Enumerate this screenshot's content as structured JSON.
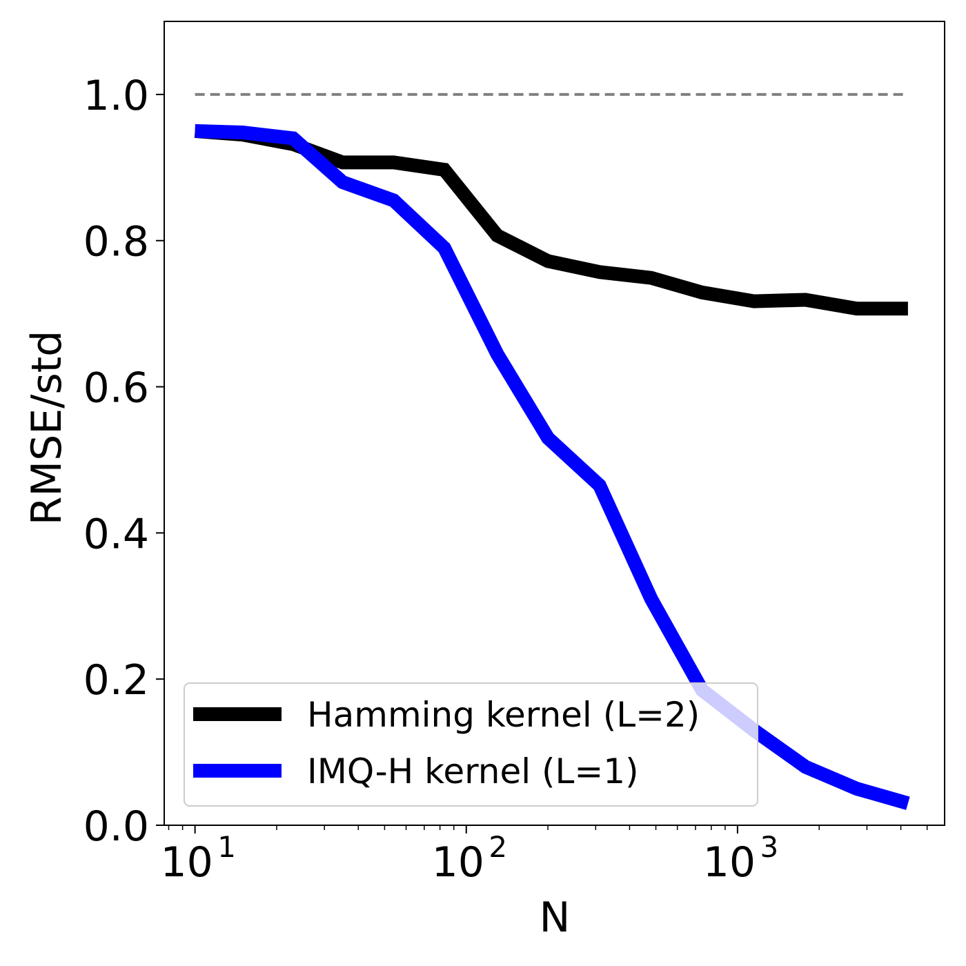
{
  "chart_data": {
    "type": "line",
    "title": "",
    "xlabel": "N",
    "ylabel": "RMSE/std",
    "x_scale": "log",
    "xlim": [
      7.7,
      5800
    ],
    "ylim": [
      0.0,
      1.1
    ],
    "grid": false,
    "legend_position": "lower-left",
    "x_ticks": [
      {
        "value": 10,
        "base": "10",
        "exp": "1"
      },
      {
        "value": 100,
        "base": "10",
        "exp": "2"
      },
      {
        "value": 1000,
        "base": "10",
        "exp": "3"
      }
    ],
    "y_ticks": [
      {
        "value": 0.0,
        "label": "0.0"
      },
      {
        "value": 0.2,
        "label": "0.2"
      },
      {
        "value": 0.4,
        "label": "0.4"
      },
      {
        "value": 0.6,
        "label": "0.6"
      },
      {
        "value": 0.8,
        "label": "0.8"
      },
      {
        "value": 1.0,
        "label": "1.0"
      }
    ],
    "x": [
      10,
      15,
      23,
      35,
      54,
      83,
      130,
      200,
      310,
      480,
      740,
      1150,
      1780,
      2750,
      4250
    ],
    "series": [
      {
        "name": "Hamming kernel (L=2)",
        "color": "#000000",
        "values": [
          0.95,
          0.945,
          0.932,
          0.907,
          0.907,
          0.897,
          0.807,
          0.772,
          0.757,
          0.749,
          0.729,
          0.717,
          0.719,
          0.707,
          0.707
        ]
      },
      {
        "name": "IMQ-H kernel (L=1)",
        "color": "#0000ff",
        "values": [
          0.95,
          0.948,
          0.94,
          0.88,
          0.855,
          0.79,
          0.645,
          0.53,
          0.465,
          0.31,
          0.185,
          0.13,
          0.08,
          0.05,
          0.03
        ]
      }
    ],
    "reference_line": {
      "value": 1.0,
      "color": "#808080",
      "style": "dashed"
    }
  }
}
